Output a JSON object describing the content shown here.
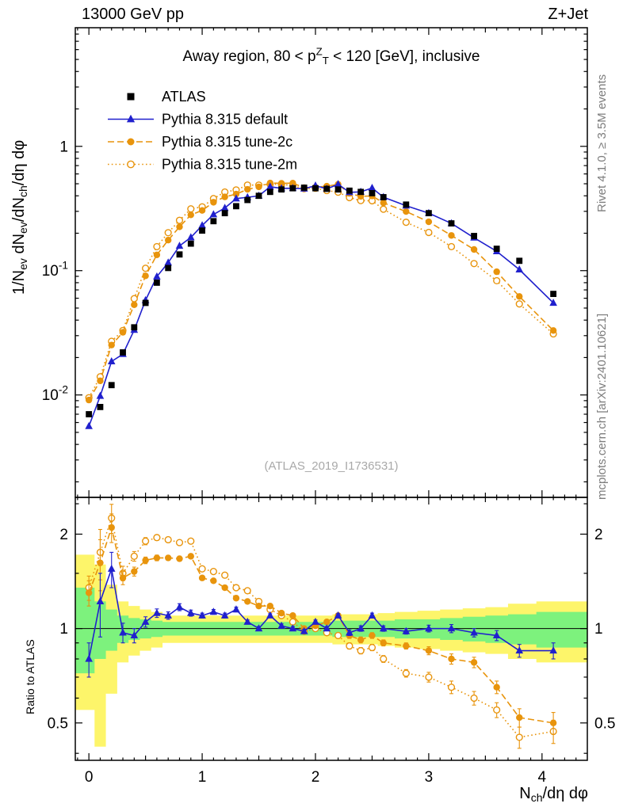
{
  "header": {
    "left": "13000 GeV pp",
    "right": "Z+Jet"
  },
  "watermark": "(ATLAS_2019_I1736531)",
  "credits": {
    "right_top": "Rivet 4.1.0, ≥ 3.5M events",
    "right_bottom": "mcplots.cern.ch [arXiv:2401.10621]"
  },
  "chart_data": {
    "type": "line",
    "title": "Away region, 80 < p^{Z}_{T} < 120 [GeV], inclusive",
    "axes": {
      "x_label": "N_{ch}/dη dφ",
      "x_ticks": [
        0,
        1,
        2,
        3,
        4
      ],
      "x_range": [
        -0.12,
        4.4
      ],
      "main_y_label": "1/N_{ev} dN_{ev}/dN_{ch}/dη dφ",
      "main_y_tick_labels": [
        "1",
        "10^{-1}",
        "10^{-2}"
      ],
      "main_y_tick_values": [
        1,
        0.1,
        0.01
      ],
      "main_y_range": [
        0.0015,
        9
      ],
      "main_y_scale": "log",
      "ratio_y_label": "Ratio to ATLAS",
      "ratio_y_ticks": [
        0.5,
        1,
        2
      ],
      "ratio_y_minor": [
        0.4,
        0.6,
        0.7,
        0.8,
        0.9,
        1.5,
        2.5
      ],
      "ratio_y_range": [
        0.38,
        2.62
      ],
      "ratio_y_scale": "log"
    },
    "x": [
      0.0,
      0.1,
      0.2,
      0.3,
      0.4,
      0.5,
      0.6,
      0.7,
      0.8,
      0.9,
      1.0,
      1.1,
      1.2,
      1.3,
      1.4,
      1.5,
      1.6,
      1.7,
      1.8,
      1.9,
      2.0,
      2.1,
      2.2,
      2.3,
      2.4,
      2.5,
      2.6,
      2.8,
      3.0,
      3.2,
      3.4,
      3.6,
      3.8,
      4.1
    ],
    "series": [
      {
        "name": "ATLAS",
        "marker": "square-filled",
        "color": "#000000",
        "line": "none",
        "values": [
          0.007,
          0.008,
          0.012,
          0.022,
          0.035,
          0.055,
          0.08,
          0.105,
          0.135,
          0.165,
          0.21,
          0.25,
          0.29,
          0.33,
          0.37,
          0.4,
          0.43,
          0.45,
          0.46,
          0.465,
          0.46,
          0.455,
          0.45,
          0.44,
          0.43,
          0.42,
          0.39,
          0.34,
          0.29,
          0.24,
          0.19,
          0.15,
          0.12,
          0.065
        ]
      },
      {
        "name": "Pythia 8.315 default",
        "marker": "triangle-filled",
        "color": "#2020cd",
        "line": "solid",
        "values": [
          0.0056,
          0.0098,
          0.0186,
          0.0213,
          0.0333,
          0.0578,
          0.0896,
          0.116,
          0.158,
          0.185,
          0.231,
          0.283,
          0.319,
          0.38,
          0.389,
          0.4,
          0.473,
          0.459,
          0.46,
          0.456,
          0.483,
          0.455,
          0.495,
          0.427,
          0.43,
          0.462,
          0.39,
          0.333,
          0.29,
          0.24,
          0.184,
          0.143,
          0.102,
          0.055
        ],
        "ratio_to_atlas": [
          0.8,
          1.22,
          1.55,
          0.97,
          0.95,
          1.05,
          1.12,
          1.1,
          1.17,
          1.12,
          1.1,
          1.13,
          1.1,
          1.15,
          1.05,
          1.0,
          1.1,
          1.02,
          1.0,
          0.98,
          1.05,
          1.0,
          1.1,
          0.97,
          1.0,
          1.1,
          1.0,
          0.98,
          1.0,
          1.0,
          0.97,
          0.95,
          0.85,
          0.85
        ],
        "ratio_err": [
          0.1,
          0.28,
          0.2,
          0.07,
          0.05,
          0.04,
          0.035,
          0.03,
          0.03,
          0.025,
          0.02,
          0.02,
          0.02,
          0.02,
          0.015,
          0.015,
          0.015,
          0.015,
          0.015,
          0.015,
          0.015,
          0.015,
          0.015,
          0.02,
          0.02,
          0.02,
          0.02,
          0.02,
          0.025,
          0.03,
          0.03,
          0.035,
          0.04,
          0.05
        ]
      },
      {
        "name": "Pythia 8.315 tune-2c",
        "marker": "circle-filled",
        "color": "#e8940c",
        "line": "dashed",
        "values": [
          0.0091,
          0.013,
          0.0252,
          0.0319,
          0.0532,
          0.0908,
          0.134,
          0.176,
          0.225,
          0.281,
          0.305,
          0.355,
          0.392,
          0.413,
          0.451,
          0.472,
          0.507,
          0.504,
          0.506,
          0.465,
          0.469,
          0.478,
          0.495,
          0.418,
          0.396,
          0.399,
          0.351,
          0.299,
          0.247,
          0.192,
          0.148,
          0.098,
          0.062,
          0.033
        ],
        "ratio_to_atlas": [
          1.3,
          1.62,
          2.1,
          1.45,
          1.52,
          1.65,
          1.68,
          1.68,
          1.67,
          1.7,
          1.45,
          1.42,
          1.35,
          1.25,
          1.22,
          1.18,
          1.18,
          1.12,
          1.1,
          1.0,
          1.02,
          1.05,
          1.1,
          0.95,
          0.92,
          0.95,
          0.9,
          0.88,
          0.85,
          0.8,
          0.78,
          0.65,
          0.52,
          0.5
        ],
        "ratio_err": [
          0.12,
          0.3,
          0.22,
          0.07,
          0.05,
          0.04,
          0.035,
          0.03,
          0.03,
          0.025,
          0.02,
          0.02,
          0.02,
          0.02,
          0.015,
          0.015,
          0.015,
          0.015,
          0.015,
          0.015,
          0.015,
          0.015,
          0.015,
          0.02,
          0.02,
          0.02,
          0.02,
          0.02,
          0.025,
          0.03,
          0.03,
          0.03,
          0.035,
          0.04
        ]
      },
      {
        "name": "Pythia 8.315 tune-2m",
        "marker": "circle-open",
        "color": "#e8940c",
        "line": "dotted",
        "values": [
          0.0095,
          0.014,
          0.027,
          0.033,
          0.0595,
          0.1045,
          0.156,
          0.202,
          0.254,
          0.314,
          0.326,
          0.38,
          0.429,
          0.446,
          0.488,
          0.488,
          0.495,
          0.495,
          0.483,
          0.456,
          0.46,
          0.441,
          0.428,
          0.387,
          0.366,
          0.365,
          0.312,
          0.245,
          0.203,
          0.156,
          0.114,
          0.083,
          0.054,
          0.031
        ],
        "ratio_to_atlas": [
          1.35,
          1.75,
          2.25,
          1.5,
          1.7,
          1.9,
          1.95,
          1.92,
          1.88,
          1.9,
          1.55,
          1.52,
          1.48,
          1.35,
          1.32,
          1.22,
          1.15,
          1.1,
          1.05,
          0.98,
          1.0,
          0.97,
          0.95,
          0.88,
          0.85,
          0.87,
          0.8,
          0.72,
          0.7,
          0.65,
          0.6,
          0.55,
          0.45,
          0.47
        ],
        "ratio_err": [
          0.12,
          0.32,
          0.24,
          0.08,
          0.06,
          0.05,
          0.04,
          0.035,
          0.03,
          0.03,
          0.025,
          0.02,
          0.02,
          0.02,
          0.02,
          0.015,
          0.015,
          0.015,
          0.015,
          0.015,
          0.015,
          0.015,
          0.015,
          0.02,
          0.02,
          0.02,
          0.02,
          0.02,
          0.025,
          0.03,
          0.03,
          0.03,
          0.035,
          0.04
        ]
      }
    ],
    "uncertainty_bands": {
      "yellow": {
        "color": "#fdf56a",
        "lo": [
          0.55,
          0.42,
          0.62,
          0.78,
          0.82,
          0.85,
          0.87,
          0.9,
          0.9,
          0.9,
          0.9,
          0.9,
          0.9,
          0.9,
          0.9,
          0.9,
          0.9,
          0.9,
          0.9,
          0.9,
          0.9,
          0.9,
          0.89,
          0.89,
          0.89,
          0.89,
          0.88,
          0.87,
          0.86,
          0.85,
          0.84,
          0.83,
          0.8,
          0.78
        ],
        "hi": [
          1.72,
          1.6,
          1.38,
          1.22,
          1.18,
          1.15,
          1.13,
          1.1,
          1.1,
          1.1,
          1.1,
          1.1,
          1.1,
          1.1,
          1.1,
          1.1,
          1.1,
          1.1,
          1.1,
          1.1,
          1.1,
          1.1,
          1.11,
          1.11,
          1.11,
          1.11,
          1.12,
          1.13,
          1.14,
          1.15,
          1.16,
          1.17,
          1.2,
          1.22
        ]
      },
      "green": {
        "color": "#7df27d",
        "lo": [
          0.72,
          0.8,
          0.85,
          0.9,
          0.92,
          0.93,
          0.94,
          0.95,
          0.95,
          0.95,
          0.95,
          0.95,
          0.95,
          0.95,
          0.95,
          0.95,
          0.95,
          0.95,
          0.95,
          0.95,
          0.95,
          0.95,
          0.94,
          0.94,
          0.94,
          0.94,
          0.94,
          0.93,
          0.93,
          0.92,
          0.91,
          0.9,
          0.89,
          0.87
        ],
        "hi": [
          1.35,
          1.22,
          1.15,
          1.1,
          1.08,
          1.07,
          1.06,
          1.05,
          1.05,
          1.05,
          1.05,
          1.05,
          1.05,
          1.05,
          1.05,
          1.05,
          1.05,
          1.05,
          1.05,
          1.05,
          1.05,
          1.05,
          1.06,
          1.06,
          1.06,
          1.06,
          1.06,
          1.07,
          1.07,
          1.08,
          1.09,
          1.1,
          1.11,
          1.13
        ]
      }
    }
  }
}
